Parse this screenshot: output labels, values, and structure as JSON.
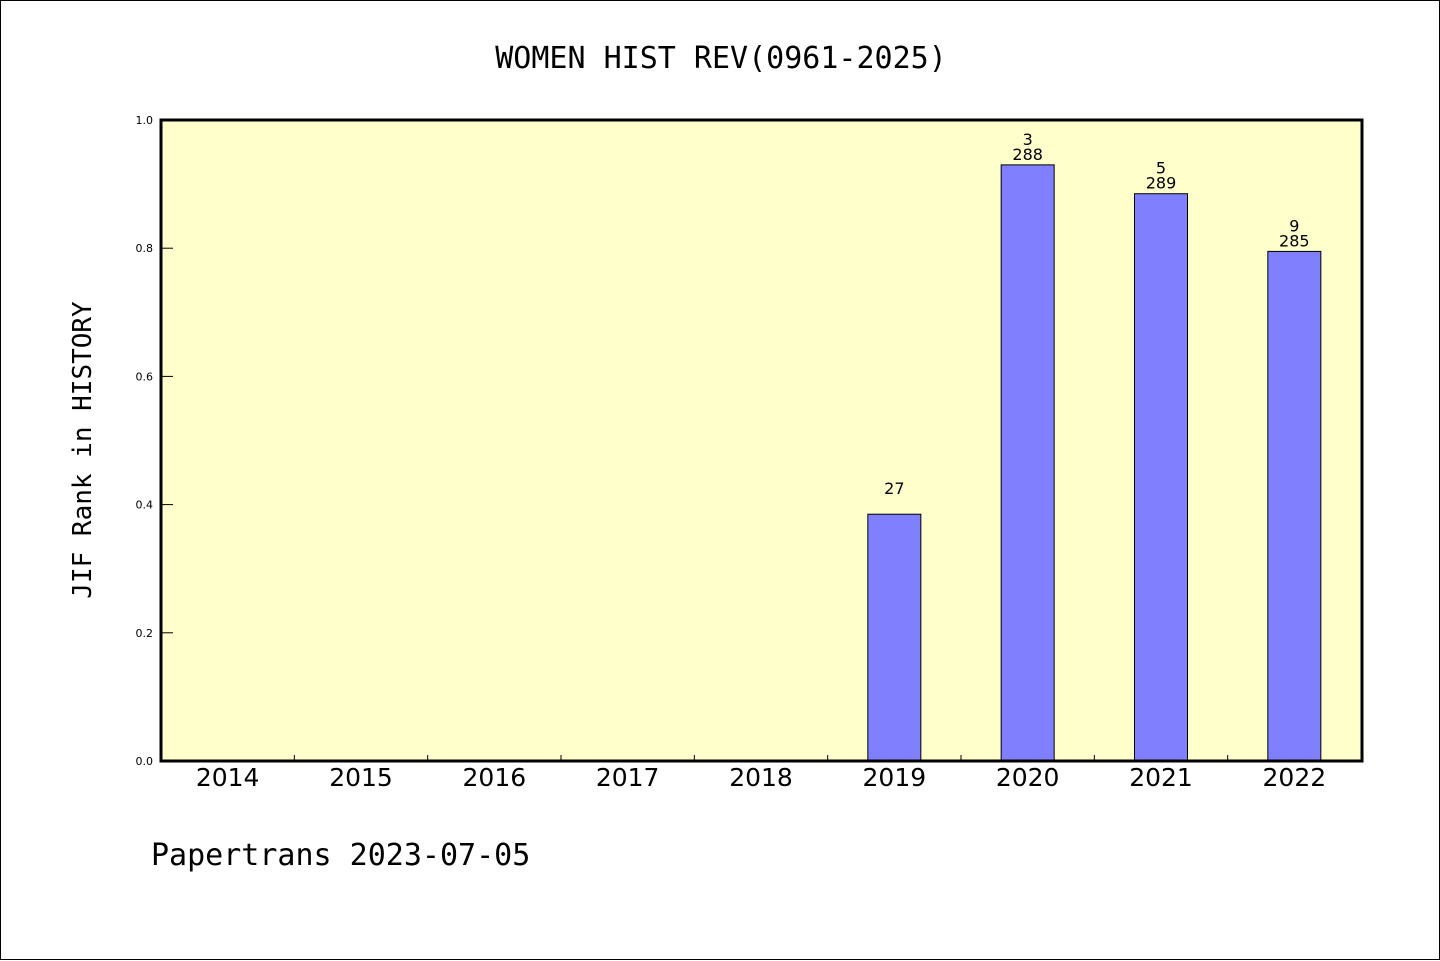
{
  "chart_data": {
    "type": "bar",
    "title": "WOMEN HIST REV(0961-2025)",
    "ylabel": "JIF Rank in HISTORY",
    "xlabel": "",
    "ylim": [
      0,
      1.0
    ],
    "yticks": [
      "0.0",
      "0.2",
      "0.4",
      "0.6",
      "0.8",
      "1.0"
    ],
    "categories": [
      "2014",
      "2015",
      "2016",
      "2017",
      "2018",
      "2019",
      "2020",
      "2021",
      "2022"
    ],
    "values": [
      null,
      null,
      null,
      null,
      null,
      0.385,
      0.93,
      0.885,
      0.795
    ],
    "rank_labels": [
      "",
      "",
      "",
      "",
      "",
      "27",
      "3",
      "5",
      "9"
    ],
    "total_labels": [
      "",
      "",
      "",
      "",
      "",
      "",
      "288",
      "289",
      "285"
    ],
    "plot_background": "#ffffcc",
    "bar_color": "#8080ff",
    "grid": false,
    "legend": "none"
  },
  "footer": {
    "text": "Papertrans 2023-07-05"
  }
}
